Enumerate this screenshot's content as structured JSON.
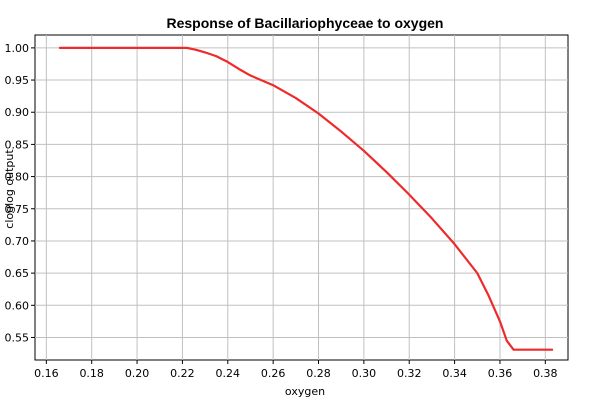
{
  "chart_data": {
    "type": "line",
    "title": "Response of Bacillariophyceae to oxygen",
    "xlabel": "oxygen",
    "ylabel": "cloglog output",
    "xlim": [
      0.155,
      0.39
    ],
    "ylim": [
      0.515,
      1.02
    ],
    "x_ticks": [
      "0.16",
      "0.18",
      "0.20",
      "0.22",
      "0.24",
      "0.26",
      "0.28",
      "0.30",
      "0.32",
      "0.34",
      "0.36",
      "0.38"
    ],
    "y_ticks": [
      "0.55",
      "0.60",
      "0.65",
      "0.70",
      "0.75",
      "0.80",
      "0.85",
      "0.90",
      "0.95",
      "1.00"
    ],
    "grid": true,
    "legend": "none",
    "series": [
      {
        "color": "#ee2a2a",
        "x": [
          0.166,
          0.18,
          0.2,
          0.222,
          0.226,
          0.23,
          0.235,
          0.24,
          0.245,
          0.25,
          0.26,
          0.27,
          0.28,
          0.29,
          0.3,
          0.31,
          0.32,
          0.33,
          0.34,
          0.35,
          0.355,
          0.36,
          0.363,
          0.366,
          0.37,
          0.383
        ],
        "y": [
          1.0,
          1.0,
          1.0,
          1.0,
          0.997,
          0.993,
          0.987,
          0.978,
          0.967,
          0.957,
          0.942,
          0.922,
          0.898,
          0.87,
          0.84,
          0.807,
          0.772,
          0.735,
          0.695,
          0.65,
          0.615,
          0.575,
          0.545,
          0.531,
          0.531,
          0.531
        ]
      }
    ]
  }
}
